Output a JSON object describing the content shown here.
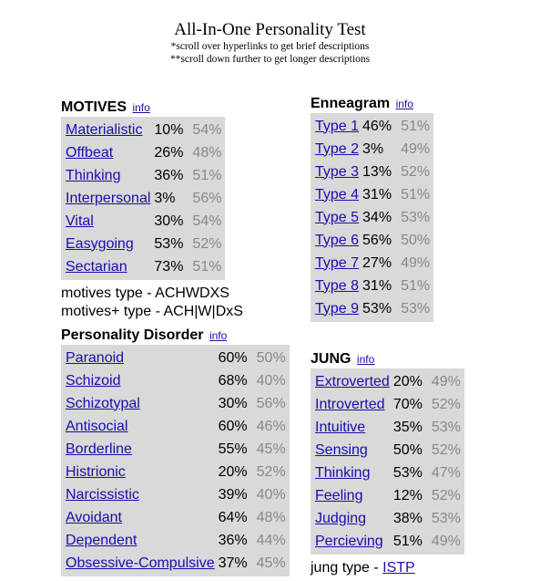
{
  "header": {
    "title": "All-In-One Personality Test",
    "note1": "*scroll over hyperlinks to get brief descriptions",
    "note2": "**scroll down further to get longer descriptions"
  },
  "motives": {
    "heading": "MOTIVES",
    "info": "info",
    "rows": [
      {
        "label": "Materialistic",
        "me": "10%",
        "avg": "54%"
      },
      {
        "label": "Offbeat",
        "me": "26%",
        "avg": "48%"
      },
      {
        "label": "Thinking",
        "me": "36%",
        "avg": "51%"
      },
      {
        "label": "Interpersonal",
        "me": "3%",
        "avg": "56%"
      },
      {
        "label": "Vital",
        "me": "30%",
        "avg": "54%"
      },
      {
        "label": "Easygoing",
        "me": "53%",
        "avg": "52%"
      },
      {
        "label": "Sectarian",
        "me": "73%",
        "avg": "51%"
      }
    ],
    "type_line": "motives type - ACHWDXS",
    "type_plus_line": "motives+ type - ACH|W|DxS"
  },
  "enneagram": {
    "heading": "Enneagram",
    "info": "info",
    "rows": [
      {
        "label": "Type 1",
        "me": "46%",
        "avg": "51%"
      },
      {
        "label": "Type 2",
        "me": "3%",
        "avg": "49%"
      },
      {
        "label": "Type 3",
        "me": "13%",
        "avg": "52%"
      },
      {
        "label": "Type 4",
        "me": "31%",
        "avg": "51%"
      },
      {
        "label": "Type 5",
        "me": "34%",
        "avg": "53%"
      },
      {
        "label": "Type 6",
        "me": "56%",
        "avg": "50%"
      },
      {
        "label": "Type 7",
        "me": "27%",
        "avg": "49%"
      },
      {
        "label": "Type 8",
        "me": "31%",
        "avg": "51%"
      },
      {
        "label": "Type 9",
        "me": "53%",
        "avg": "53%"
      }
    ]
  },
  "disorder": {
    "heading": "Personality Disorder",
    "info": "info",
    "rows": [
      {
        "label": "Paranoid",
        "me": "60%",
        "avg": "50%"
      },
      {
        "label": "Schizoid",
        "me": "68%",
        "avg": "40%"
      },
      {
        "label": "Schizotypal",
        "me": "30%",
        "avg": "56%"
      },
      {
        "label": "Antisocial",
        "me": "60%",
        "avg": "46%"
      },
      {
        "label": "Borderline",
        "me": "55%",
        "avg": "45%"
      },
      {
        "label": "Histrionic",
        "me": "20%",
        "avg": "52%"
      },
      {
        "label": "Narcissistic",
        "me": "39%",
        "avg": "40%"
      },
      {
        "label": "Avoidant",
        "me": "64%",
        "avg": "48%"
      },
      {
        "label": "Dependent",
        "me": "36%",
        "avg": "44%"
      },
      {
        "label": "Obsessive-Compulsive",
        "me": "37%",
        "avg": "45%"
      }
    ]
  },
  "jung": {
    "heading": "JUNG",
    "info": "info",
    "rows": [
      {
        "label": "Extroverted",
        "me": "20%",
        "avg": "49%"
      },
      {
        "label": "Introverted",
        "me": "70%",
        "avg": "52%"
      },
      {
        "label": "Intuitive",
        "me": "35%",
        "avg": "53%"
      },
      {
        "label": "Sensing",
        "me": "50%",
        "avg": "52%"
      },
      {
        "label": "Thinking",
        "me": "53%",
        "avg": "47%"
      },
      {
        "label": "Feeling",
        "me": "12%",
        "avg": "52%"
      },
      {
        "label": "Judging",
        "me": "38%",
        "avg": "53%"
      },
      {
        "label": "Percieving",
        "me": "51%",
        "avg": "49%"
      }
    ],
    "type_prefix": "jung type - ",
    "type_value": "ISTP"
  }
}
